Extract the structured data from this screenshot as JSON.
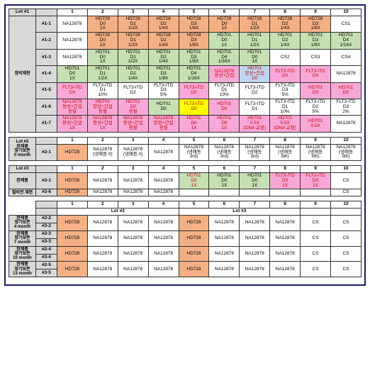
{
  "colors": {
    "gray": "#d9d9d9",
    "orange": "#f4b083",
    "pink": "#f7a8d8",
    "green": "#c5e0b3",
    "blue": "#bdd6ee",
    "yellow": "#ffff00",
    "white": "#ffffff"
  },
  "lot1": {
    "corner": "Lot #1",
    "cols": [
      "1",
      "2",
      "3",
      "4",
      "5",
      "6",
      "7",
      "8",
      "9",
      "10"
    ],
    "sideLabel": "장비재현",
    "rows": [
      {
        "id": "#1-1",
        "cells": [
          {
            "t": "NA12878",
            "c": "white"
          },
          {
            "t": "HD728\nD0\n1X",
            "c": "orange"
          },
          {
            "t": "HD728\nD1\n1/2X",
            "c": "orange"
          },
          {
            "t": "HD728\nD2\n1/4X",
            "c": "orange"
          },
          {
            "t": "HD728\nD3\n1/8X",
            "c": "orange"
          },
          {
            "t": "HD728\nD0\n1X",
            "c": "orange"
          },
          {
            "t": "HD728\nD1\n1/2X",
            "c": "orange"
          },
          {
            "t": "HD728\nD2\n1/4X",
            "c": "orange"
          },
          {
            "t": "HD728\nD3\n1/8X",
            "c": "orange"
          },
          {
            "t": "CS1",
            "c": "white"
          }
        ]
      },
      {
        "id": "#1-2",
        "cells": [
          {
            "t": "NA12878",
            "c": "white"
          },
          {
            "t": "HD728\nD0\n1X",
            "c": "orange"
          },
          {
            "t": "HD728\nD1\n1/2X",
            "c": "orange"
          },
          {
            "t": "HD728\nD2\n1/4X",
            "c": "orange"
          },
          {
            "t": "HD728\nD3\n1/8X",
            "c": "orange"
          },
          {
            "t": "HD701\nD0\n1X",
            "c": "green"
          },
          {
            "t": "HD701\nD1\n1/2X",
            "c": "green"
          },
          {
            "t": "HD701\nD2\n1/4X",
            "c": "green"
          },
          {
            "t": "HD701\nD3\n1/8X",
            "c": "green"
          },
          {
            "t": "HD701\nD4\n1/16X",
            "c": "green"
          }
        ]
      },
      {
        "id": "#1-3",
        "cells": [
          {
            "t": "NA12878",
            "c": "white"
          },
          {
            "t": "HD701\nD0\n1X",
            "c": "green"
          },
          {
            "t": "HD701\nD1\n1/2X",
            "c": "green"
          },
          {
            "t": "HD701\nD2\n1/4X",
            "c": "green"
          },
          {
            "t": "HD701\nD3\n1/8X",
            "c": "green"
          },
          {
            "t": "HD701\nD4\n1/16X",
            "c": "green"
          },
          {
            "t": "HD701\nD0\n1X",
            "c": "green"
          },
          {
            "t": "CS2",
            "c": "white"
          },
          {
            "t": "CS3",
            "c": "white"
          },
          {
            "t": "CS4",
            "c": "white"
          }
        ]
      },
      {
        "id": "#1-4",
        "cells": [
          {
            "t": "HD701\nD0\n1X",
            "c": "green"
          },
          {
            "t": "HD701\nD1\n1/2X",
            "c": "green"
          },
          {
            "t": "HD701\nD2\n1/4X",
            "c": "green"
          },
          {
            "t": "HD701\nD3\n1/8X",
            "c": "green"
          },
          {
            "t": "HD701\nD4\n1/16X",
            "c": "green"
          },
          {
            "t": "NA12878\n용성+간섭\n",
            "c": "pink",
            "red": true
          },
          {
            "t": "HD701\n양성+간섭\nD0",
            "c": "blue",
            "red": true
          },
          {
            "t": "FLT3-ITD\nD0\n",
            "c": "pink",
            "red": true
          },
          {
            "t": "FLT3-ITD\nD0\n",
            "c": "pink",
            "red": true
          },
          {
            "t": "NA12878",
            "c": "white"
          }
        ]
      },
      {
        "id": "#1-5",
        "cells": [
          {
            "t": "FLT3-ITD\nD0\n",
            "c": "pink",
            "red": true
          },
          {
            "t": "FLT3-ITD\nD1\n10%",
            "c": "white"
          },
          {
            "t": "FLT3-ITD\nD2\n",
            "c": "white"
          },
          {
            "t": "FLT3-ITD\nD3\n5%",
            "c": "white"
          },
          {
            "t": "FLT3-ITD\nD0\n",
            "c": "pink",
            "red": true
          },
          {
            "t": "FLT3-ITD\nD1\n10%",
            "c": "white"
          },
          {
            "t": "FLT3-ITD\nD2\n",
            "c": "white"
          },
          {
            "t": "FLT3-ITD\nD3\n5%",
            "c": "white"
          },
          {
            "t": "HD701\nD0\n",
            "c": "pink",
            "red": true
          },
          {
            "t": "HD701\nD0\n",
            "c": "pink",
            "red": true
          }
        ]
      },
      {
        "id": "#1-6",
        "cells": [
          {
            "t": "NA12878\n용성+간섭\n용혈",
            "c": "pink",
            "red": true
          },
          {
            "t": "HD701\n양성+간섭\n용혈",
            "c": "pink",
            "red": true
          },
          {
            "t": "HD701\nD0\n용혈",
            "c": "pink",
            "red": true
          },
          {
            "t": "HD701\nD0\n",
            "c": "green"
          },
          {
            "t": "FLT3-ITD\nD0\n",
            "c": "yellow",
            "red": true
          },
          {
            "t": "HD701\nD0\n",
            "c": "pink",
            "red": true
          },
          {
            "t": "FLT3-ITD\nD1\n",
            "c": "white"
          },
          {
            "t": "FLT3-ITD\nD1\n10%",
            "c": "white"
          },
          {
            "t": "FLT3-ITD\nD2\n5%",
            "c": "white"
          },
          {
            "t": "FLT3-ITD\nD3\n2%",
            "c": "white"
          }
        ]
      },
      {
        "id": "#1-7",
        "cells": [
          {
            "t": "NA12878\n용성+간섭\n1X",
            "c": "pink",
            "red": true
          },
          {
            "t": "NA12878\n용성+간섭\n1X",
            "c": "pink",
            "red": true
          },
          {
            "t": "NA12878\n용성+간섭\n용혈",
            "c": "pink",
            "red": true
          },
          {
            "t": "NA12878\n양성+간섭\n용혈",
            "c": "pink",
            "red": true
          },
          {
            "t": "HD701\nD0\n1X",
            "c": "pink",
            "red": true
          },
          {
            "t": "HD701\nD0\n1X",
            "c": "pink",
            "red": true
          },
          {
            "t": "HD701\n0.5X\n(DNA 교정)",
            "c": "pink",
            "red": true
          },
          {
            "t": "HD701\n0.5X\n(DNA 교정)",
            "c": "pink",
            "red": true
          },
          {
            "t": "HD701\n0.5X\n",
            "c": "pink",
            "red": true
          },
          {
            "t": "NA12878",
            "c": "white"
          }
        ]
      }
    ]
  },
  "lot2": {
    "sideLabel": "Lot #2\n완제품\n장기보존\n0 month",
    "cols": [
      "1",
      "2",
      "3",
      "4",
      "5",
      "6",
      "7",
      "8",
      "9",
      "10"
    ],
    "rows": [
      {
        "id": "#2-1",
        "cells": [
          {
            "t": "HD728",
            "c": "orange"
          },
          {
            "t": "NA12878\n(냉해동 0)",
            "c": "white"
          },
          {
            "t": "NA12878\n(냉해동 0)",
            "c": "white"
          },
          {
            "t": "NA12878",
            "c": "white"
          },
          {
            "t": "NA12878\n(냉해동\n3rd)",
            "c": "white"
          },
          {
            "t": "NA12878\n(냉해동\n3rd)",
            "c": "white"
          },
          {
            "t": "NA12878\n(냉해동\n3rd)",
            "c": "white"
          },
          {
            "t": "NA12878\n(냉해동\n5th)",
            "c": "white"
          },
          {
            "t": "NA12878\n(냉해동\n5th)",
            "c": "white"
          },
          {
            "t": "NA12878\n(냉해동\n5th)",
            "c": "white"
          }
        ]
      }
    ]
  },
  "lot3": {
    "sideTop": "Lot #3",
    "sideA": "완제품",
    "sideB": "컬비전 재현",
    "cols": [
      "1",
      "2",
      "3",
      "4",
      "5",
      "6",
      "7",
      "8",
      "9",
      "10"
    ],
    "rows": [
      {
        "id": "#3-1",
        "cells": [
          {
            "t": "HD728",
            "c": "orange"
          },
          {
            "t": "NA12878",
            "c": "white"
          },
          {
            "t": "NA12878",
            "c": "white"
          },
          {
            "t": "NA12878",
            "c": "white"
          },
          {
            "t": "HD701\nD0\n1X",
            "c": "green",
            "red": true
          },
          {
            "t": "HD701\nD0\n1X",
            "c": "green"
          },
          {
            "t": "HD701\nD0\n1X",
            "c": "green"
          },
          {
            "t": "FLT3-ITD\nD0\n1X",
            "c": "pink",
            "red": true
          },
          {
            "t": "FLT3-ITD\nD0\n1X",
            "c": "pink",
            "red": true
          },
          {
            "t": "CS",
            "c": "white"
          }
        ]
      },
      {
        "id": "#3-6",
        "cells": [
          {
            "t": "HD728",
            "c": "orange"
          },
          {
            "t": "NA12878",
            "c": "white"
          },
          {
            "t": "NA12878",
            "c": "white"
          },
          {
            "t": "NA12878",
            "c": "white"
          },
          {
            "t": "",
            "c": "white"
          },
          {
            "t": "",
            "c": "white"
          },
          {
            "t": "",
            "c": "white"
          },
          {
            "t": "",
            "c": "white"
          },
          {
            "t": "",
            "c": "white"
          },
          {
            "t": "CS",
            "c": "white"
          }
        ]
      }
    ]
  },
  "storage": {
    "cols": [
      "1",
      "2",
      "3",
      "4",
      "5",
      "6",
      "7",
      "8",
      "9",
      "10"
    ],
    "lotHdr": [
      "Lot #2",
      "Lot #3"
    ],
    "groups": [
      {
        "side": "완제품\n장기보존\n4 month",
        "rows": [
          {
            "id": "#2-2",
            "cells": [
              {
                "t": "HD728",
                "c": "orange"
              },
              {
                "t": "NA12878"
              },
              {
                "t": "NA12878"
              },
              {
                "t": "NA12878"
              },
              {
                "t": "HD728",
                "c": "orange"
              },
              {
                "t": "NA12878"
              },
              {
                "t": "NA12878"
              },
              {
                "t": "NA12878"
              },
              {
                "t": "CS"
              },
              {
                "t": "CS"
              }
            ]
          },
          {
            "id": "#3-2",
            "cells": [
              null
            ]
          }
        ]
      },
      {
        "side": "완제품\n장기보존\n7 month",
        "rows": [
          {
            "id": "#2-3",
            "cells": [
              {
                "t": "HD728",
                "c": "orange"
              },
              {
                "t": "NA12878"
              },
              {
                "t": "NA12878"
              },
              {
                "t": "NA12878"
              },
              {
                "t": "HD728",
                "c": "orange"
              },
              {
                "t": "NA12878"
              },
              {
                "t": "NA12878"
              },
              {
                "t": "NA12878"
              },
              {
                "t": "CS"
              },
              {
                "t": "CS"
              }
            ]
          },
          {
            "id": "#3-3",
            "cells": [
              null
            ]
          }
        ]
      },
      {
        "side": "완제품\n장기보존\n10 month",
        "rows": [
          {
            "id": "#2-4",
            "cells": [
              {
                "t": "HD728",
                "c": "orange"
              },
              {
                "t": "NA12878"
              },
              {
                "t": "NA12878"
              },
              {
                "t": "NA12878"
              },
              {
                "t": "HD728",
                "c": "orange"
              },
              {
                "t": "NA12878"
              },
              {
                "t": "NA12878"
              },
              {
                "t": "NA12878"
              },
              {
                "t": "CS"
              },
              {
                "t": "CS"
              }
            ]
          },
          {
            "id": "#3-4",
            "cells": [
              null
            ]
          }
        ]
      },
      {
        "side": "완제품\n장기보존\n13 month",
        "rows": [
          {
            "id": "#2-5",
            "cells": [
              {
                "t": "HD728",
                "c": "orange"
              },
              {
                "t": "NA12878"
              },
              {
                "t": "NA12878"
              },
              {
                "t": "NA12878"
              },
              {
                "t": "HD728",
                "c": "orange"
              },
              {
                "t": "NA12878"
              },
              {
                "t": "NA12878"
              },
              {
                "t": "NA12878"
              },
              {
                "t": "CS"
              },
              {
                "t": "CS"
              }
            ]
          },
          {
            "id": "#3-5",
            "cells": [
              null
            ]
          }
        ]
      }
    ]
  }
}
